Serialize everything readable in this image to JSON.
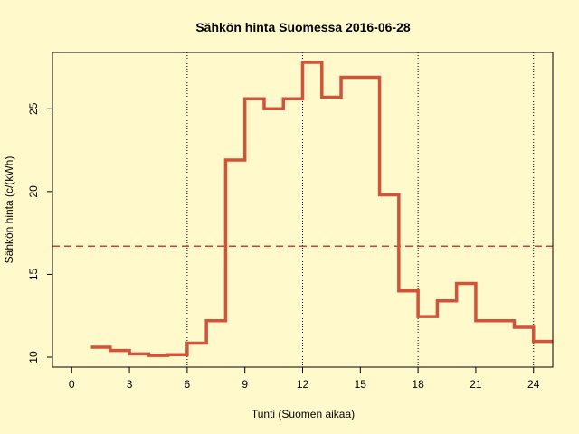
{
  "chart_data": {
    "type": "line",
    "step": true,
    "title": "Sähkön hinta Suomessa 2016-06-28",
    "xlabel": "Tunti (Suomen aikaa)",
    "ylabel": "Sähkön hinta (c/(kWh)",
    "x_ticks": [
      0,
      3,
      6,
      9,
      12,
      15,
      18,
      21,
      24
    ],
    "y_ticks": [
      10,
      15,
      20,
      25
    ],
    "xlim": [
      -1,
      25
    ],
    "ylim": [
      9.4,
      28.4
    ],
    "vertical_reference_lines": [
      6,
      12,
      18,
      24
    ],
    "horizontal_reference_line": {
      "value": 16.7,
      "style": "dashed"
    },
    "series": [
      {
        "x": [
          1,
          2,
          3,
          4,
          5,
          6,
          7,
          8,
          9,
          10,
          11,
          12,
          13,
          14,
          15,
          16,
          17,
          18,
          19,
          20,
          21,
          22,
          23,
          24,
          25
        ],
        "y": [
          10.6,
          10.4,
          10.2,
          10.1,
          10.15,
          10.85,
          12.2,
          21.9,
          25.6,
          25.0,
          25.6,
          27.8,
          25.7,
          26.9,
          26.9,
          19.8,
          14.0,
          12.45,
          13.4,
          14.45,
          12.2,
          12.2,
          11.8,
          10.95,
          10.95
        ]
      }
    ],
    "colors": {
      "background": "#fff9cc",
      "line": "#d0533a",
      "mean_line": "#d04040",
      "axis": "#000000"
    }
  }
}
